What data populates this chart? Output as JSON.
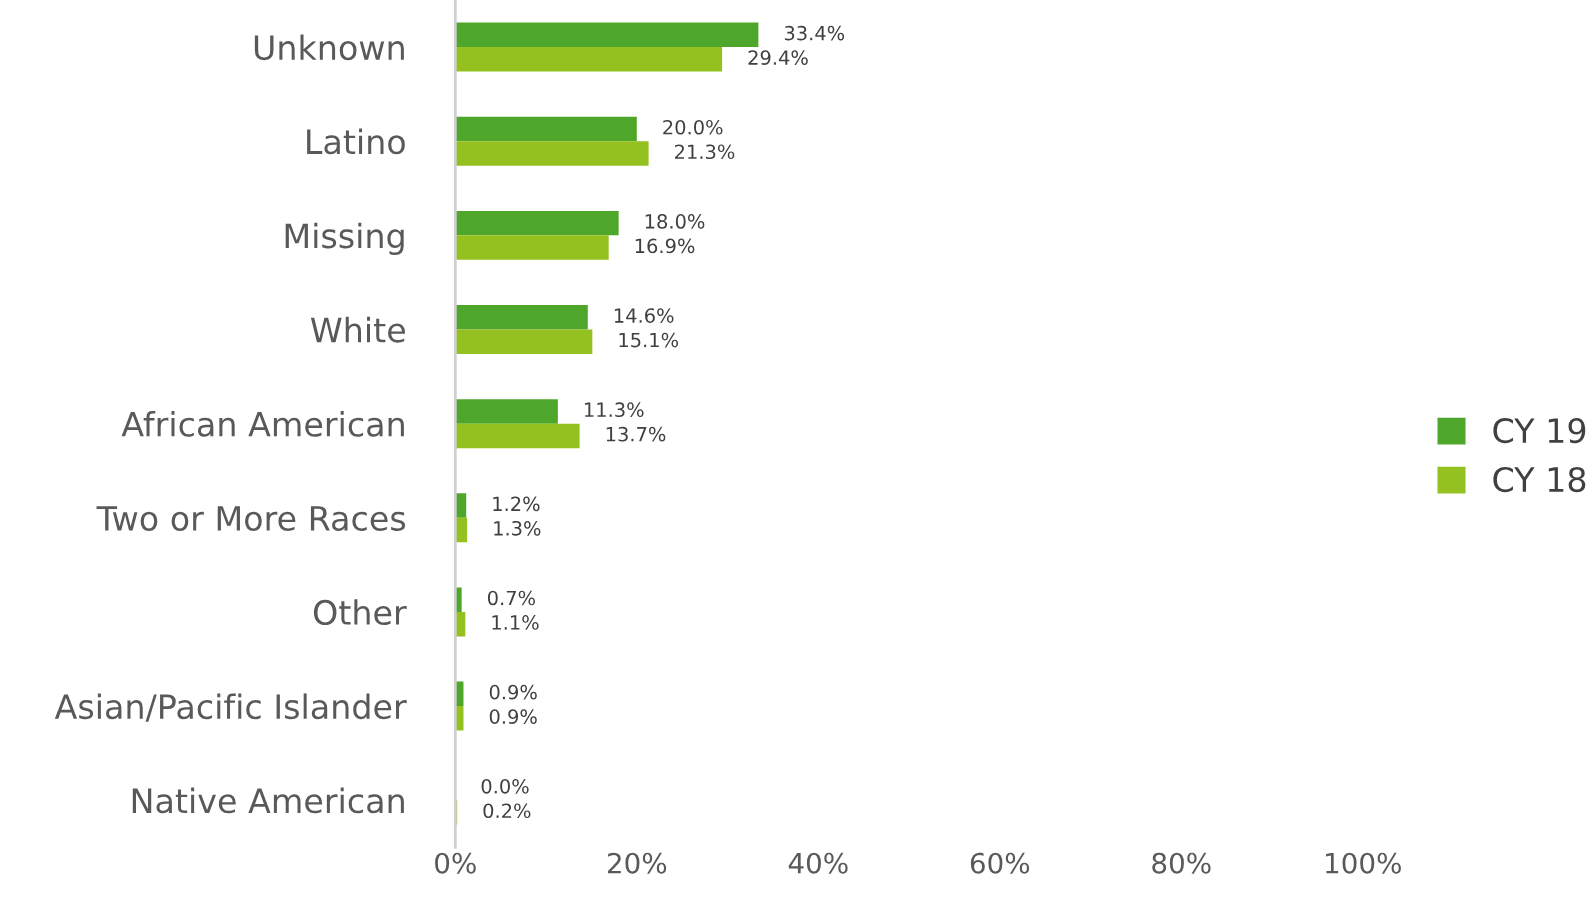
{
  "chart_data": {
    "type": "bar",
    "orientation": "horizontal",
    "categories": [
      "Unknown",
      "Latino",
      "Missing",
      "White",
      "African American",
      "Two or More Races",
      "Other",
      "Asian/Pacific Islander",
      "Native American"
    ],
    "series": [
      {
        "name": "CY 19",
        "color": "#4ea72a",
        "values": [
          33.4,
          20.0,
          18.0,
          14.6,
          11.3,
          1.2,
          0.7,
          0.9,
          0.0
        ],
        "value_labels": [
          "33.4%",
          "20.0%",
          "18.0%",
          "14.6%",
          "11.3%",
          "1.2%",
          "0.7%",
          "0.9%",
          "0.0%"
        ]
      },
      {
        "name": "CY 18",
        "color": "#94c11f",
        "values": [
          29.4,
          21.3,
          16.9,
          15.1,
          13.7,
          1.3,
          1.1,
          0.9,
          0.2
        ],
        "value_labels": [
          "29.4%",
          "21.3%",
          "16.9%",
          "15.1%",
          "13.7%",
          "1.3%",
          "1.1%",
          "0.9%",
          "0.2%"
        ]
      }
    ],
    "xlim": [
      0,
      100
    ],
    "xticks": [
      {
        "value": 0,
        "label": "0%"
      },
      {
        "value": 20,
        "label": "20%"
      },
      {
        "value": 40,
        "label": "40%"
      },
      {
        "value": 60,
        "label": "60%"
      },
      {
        "value": 80,
        "label": "80%"
      },
      {
        "value": 100,
        "label": "100%"
      }
    ],
    "grid": false,
    "legend": "right"
  }
}
